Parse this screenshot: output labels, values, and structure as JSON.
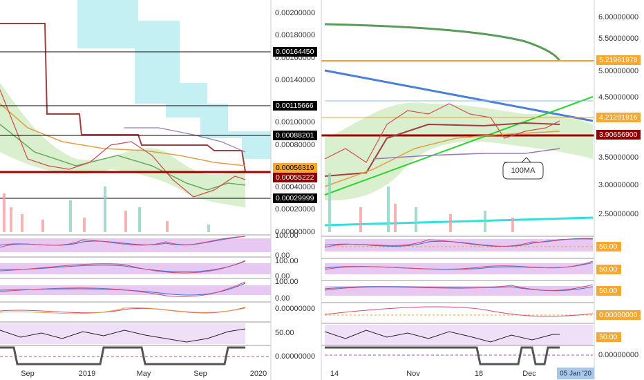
{
  "left_chart": {
    "price_axis": [
      "0.00200000",
      "0.00180000",
      "0.00160000",
      "0.00140000",
      "0.00100000",
      "0.00080000",
      "0.00040000",
      "0.00020000",
      "0.00000000"
    ],
    "price_tags": [
      "0.00164450",
      "0.00115666",
      "0.00088201",
      "0.00056319",
      "0.00055222",
      "0.00029999"
    ],
    "indicator_axis": [
      "100.00",
      "0.00",
      "100.00",
      "0.00",
      "100.00",
      "0.00",
      "0.00000000",
      "50.00",
      "0.00000000"
    ],
    "time_axis": [
      "Sep",
      "2019",
      "May",
      "Sep",
      "2020"
    ]
  },
  "right_chart": {
    "price_axis": [
      "6.00000000",
      "5.50000000",
      "5.00000000",
      "4.50000000",
      "3.50000000",
      "3.00000000",
      "2.50000000"
    ],
    "price_tags": [
      "5.21961978",
      "4.21201916",
      "3.90656900"
    ],
    "indicator_tags": [
      "50.00",
      "50.00",
      "50.00",
      "0.00000000",
      "50.00"
    ],
    "indicator_axis": [
      "0.00000000"
    ],
    "time_axis": [
      "14",
      "Nov",
      "18",
      "Dec"
    ],
    "time_cursor": "05 Jan '20",
    "annotation": "100MA"
  }
}
